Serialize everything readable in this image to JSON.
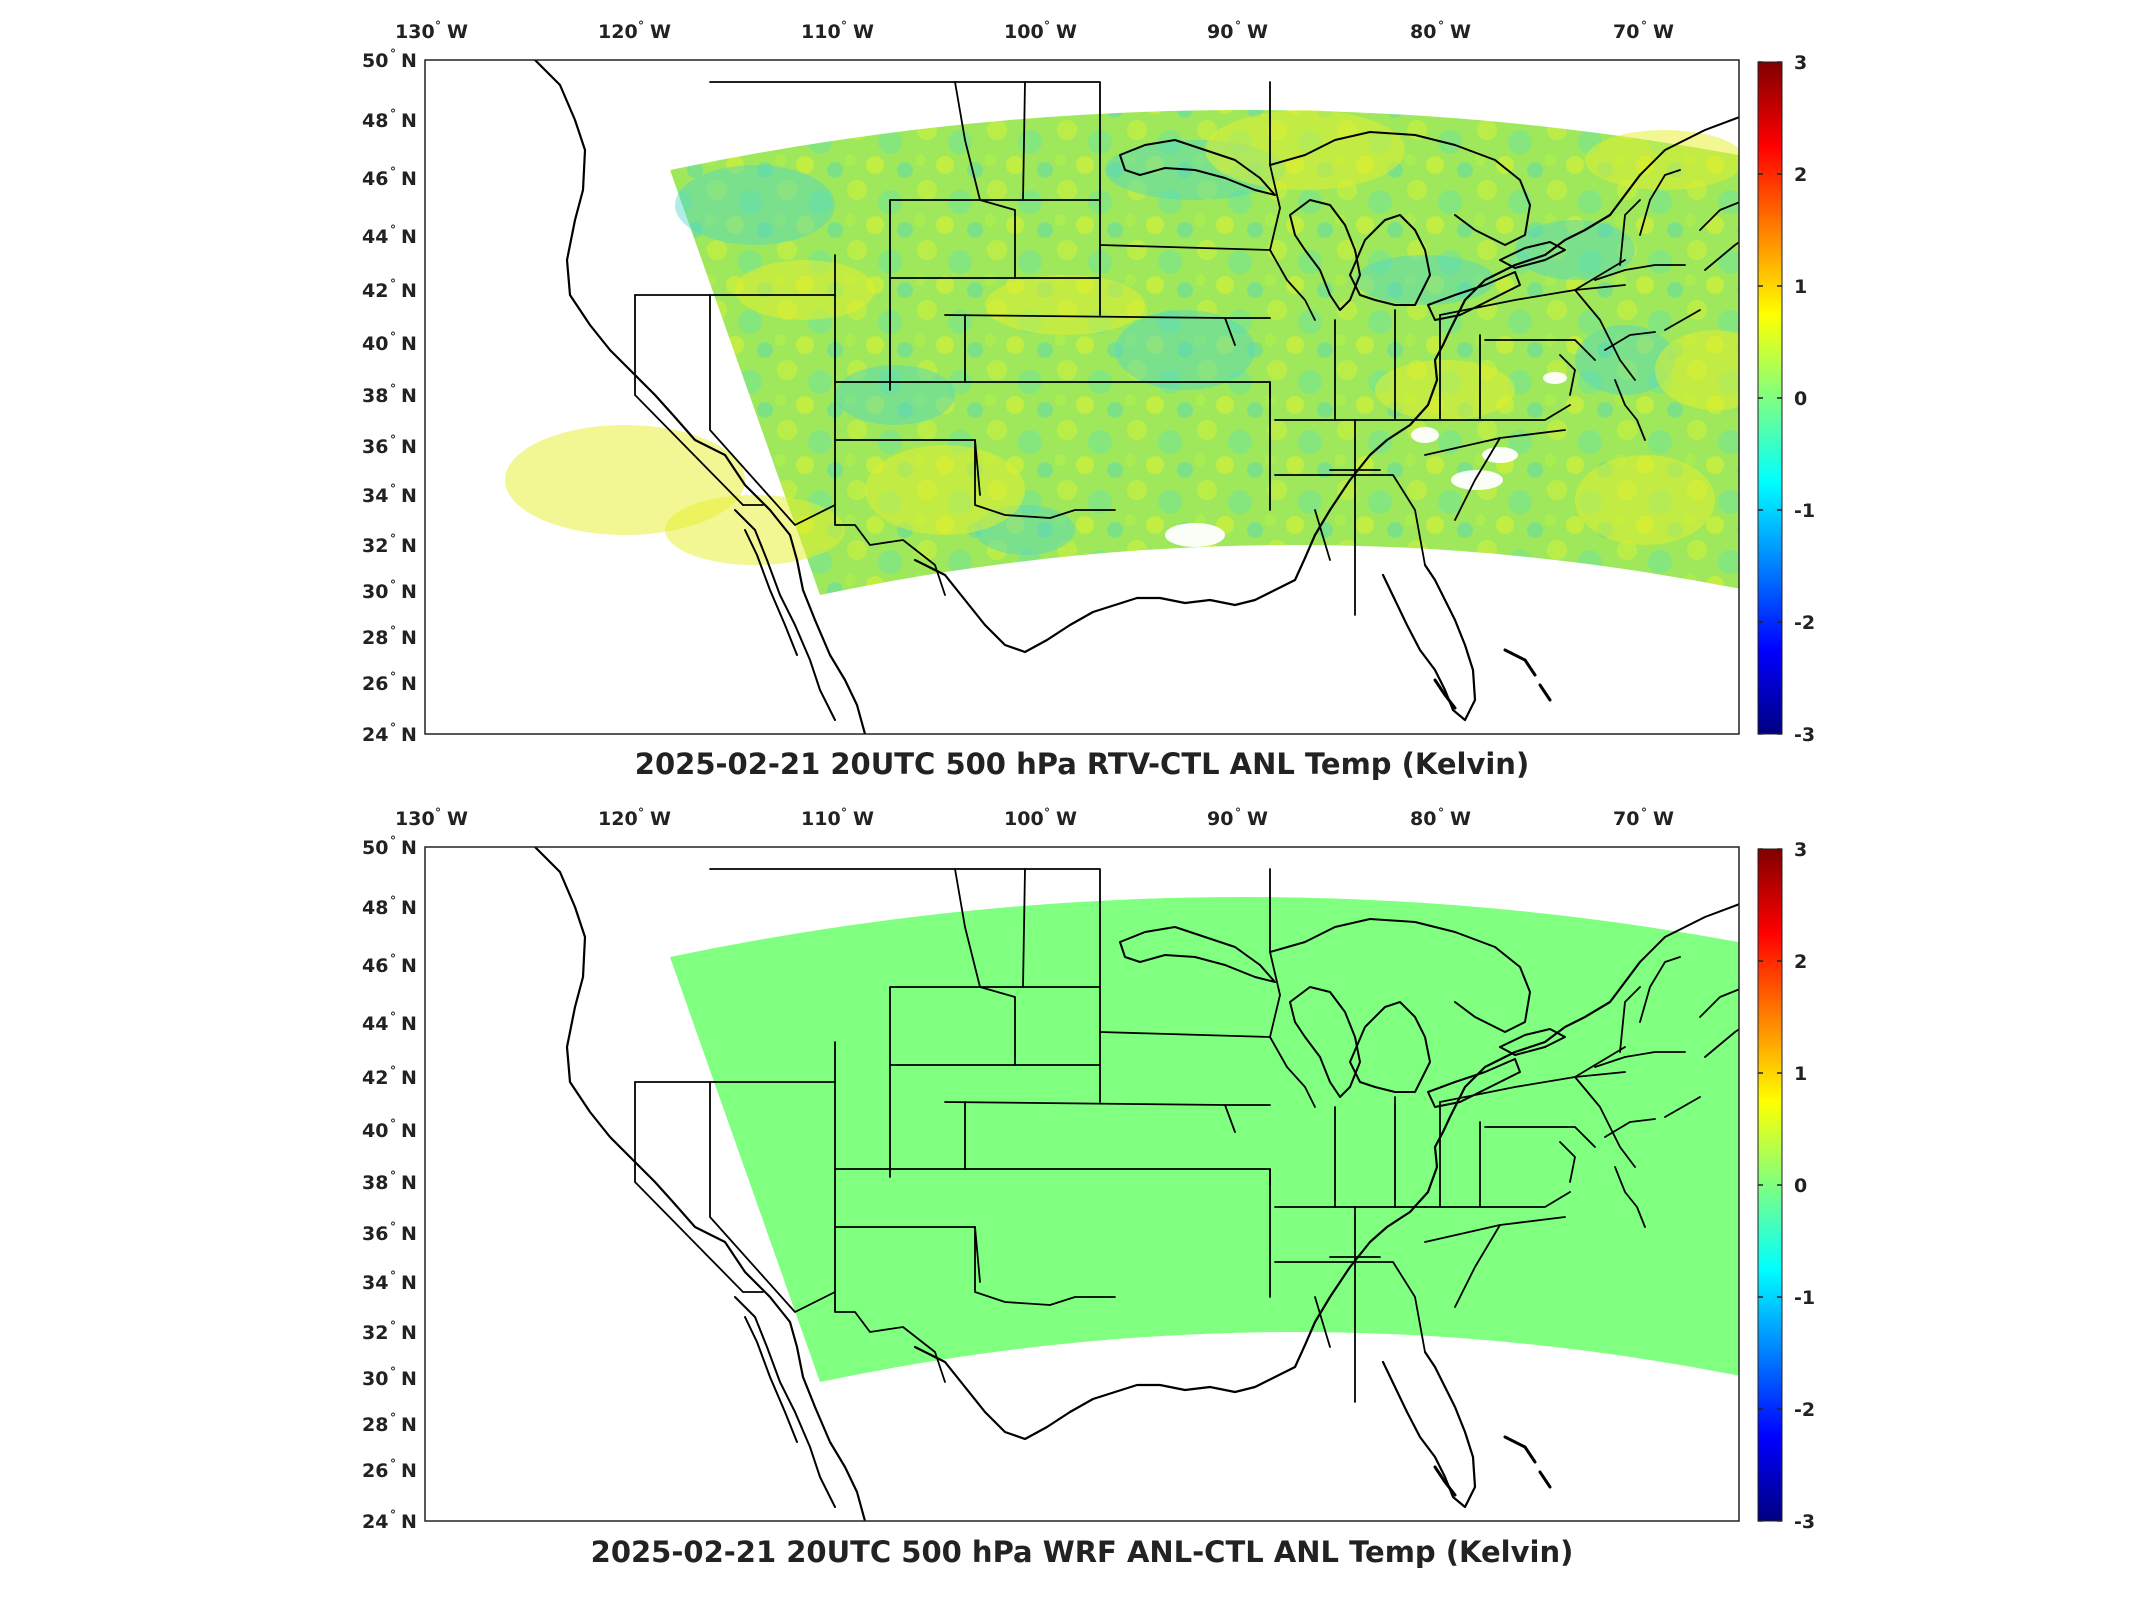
{
  "panels": [
    {
      "title": "2025-02-21 20UTC 500 hPa RTV-CTL ANL Temp (Kelvin)",
      "field": "RTV-CTL",
      "state": "varied",
      "fill_color": "#a8ee50"
    },
    {
      "title": "2025-02-21 20UTC 500 hPa WRF ANL-CTL ANL Temp (Kelvin)",
      "field": "WRF ANL-CTL",
      "state": "uniform-zero",
      "fill_color": "#80ff80"
    }
  ],
  "lon_labels": [
    {
      "value": "130",
      "hemi": "W"
    },
    {
      "value": "120",
      "hemi": "W"
    },
    {
      "value": "110",
      "hemi": "W"
    },
    {
      "value": "100",
      "hemi": "W"
    },
    {
      "value": "90",
      "hemi": "W"
    },
    {
      "value": "80",
      "hemi": "W"
    },
    {
      "value": "70",
      "hemi": "W"
    }
  ],
  "lat_labels": [
    {
      "value": "50",
      "hemi": "N"
    },
    {
      "value": "48",
      "hemi": "N"
    },
    {
      "value": "46",
      "hemi": "N"
    },
    {
      "value": "44",
      "hemi": "N"
    },
    {
      "value": "42",
      "hemi": "N"
    },
    {
      "value": "40",
      "hemi": "N"
    },
    {
      "value": "38",
      "hemi": "N"
    },
    {
      "value": "36",
      "hemi": "N"
    },
    {
      "value": "34",
      "hemi": "N"
    },
    {
      "value": "32",
      "hemi": "N"
    },
    {
      "value": "30",
      "hemi": "N"
    },
    {
      "value": "28",
      "hemi": "N"
    },
    {
      "value": "26",
      "hemi": "N"
    },
    {
      "value": "24",
      "hemi": "N"
    }
  ],
  "colorbar": {
    "ticks": [
      "3",
      "2",
      "1",
      "0",
      "-1",
      "-2",
      "-3"
    ],
    "colormap": "jet",
    "colors": [
      "#000080",
      "#0000ff",
      "#0080ff",
      "#00ffff",
      "#80ff80",
      "#ffff00",
      "#ff8000",
      "#ff0000",
      "#800000"
    ]
  },
  "map_colors": {
    "boundary": "#000000",
    "frame": "#222222"
  }
}
